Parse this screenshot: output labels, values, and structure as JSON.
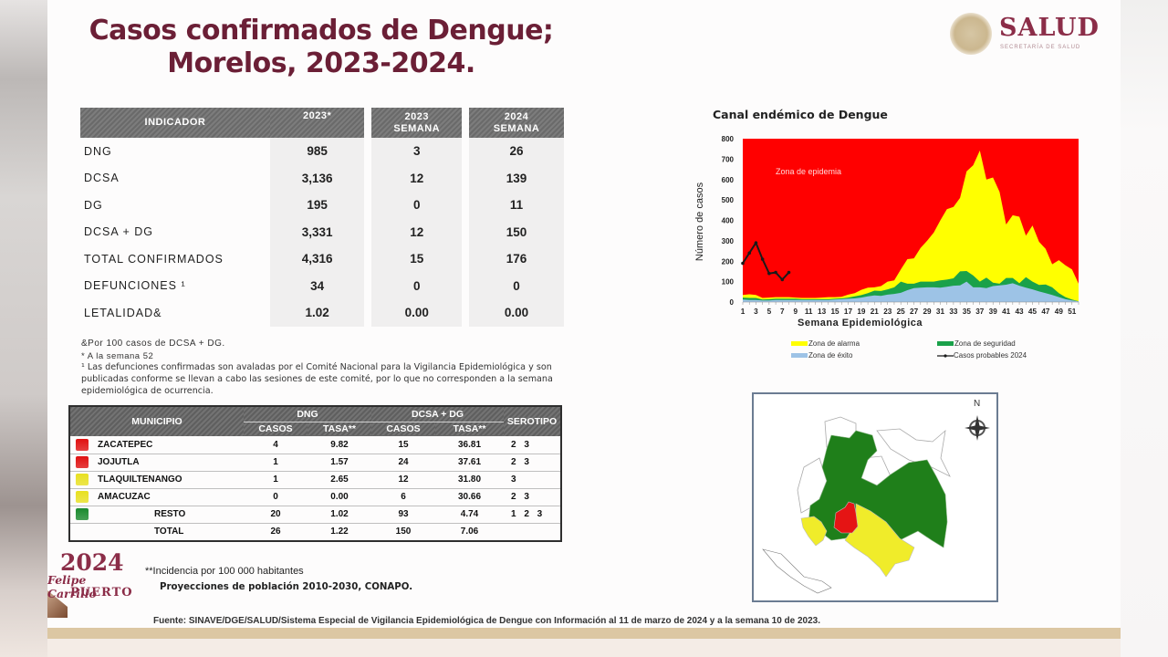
{
  "title": {
    "line1": "Casos confirmados de Dengue;",
    "line2": "Morelos, 2023-2024."
  },
  "logo": {
    "brand": "SALUD",
    "subtitle": "SECRETARÍA DE SALUD"
  },
  "indicator_table": {
    "headers": [
      "INDICADOR",
      "2023*",
      "2023 SEMANA",
      "2024 SEMANA"
    ],
    "header_lines": {
      "col1": "INDICADOR",
      "col2": "2023*",
      "col3_a": "2023",
      "col3_b": "SEMANA",
      "col4_a": "2024",
      "col4_b": "SEMANA"
    },
    "rows": [
      {
        "label": "DNG",
        "y2023": "985",
        "w2023": "3",
        "w2024": "26"
      },
      {
        "label": "DCSA",
        "y2023": "3,136",
        "w2023": "12",
        "w2024": "139"
      },
      {
        "label": "DG",
        "y2023": "195",
        "w2023": "0",
        "w2024": "11"
      },
      {
        "label": "DCSA + DG",
        "y2023": "3,331",
        "w2023": "12",
        "w2024": "150"
      },
      {
        "label": "TOTAL CONFIRMADOS",
        "y2023": "4,316",
        "w2023": "15",
        "w2024": "176"
      },
      {
        "label": "DEFUNCIONES ¹",
        "y2023": "34",
        "w2023": "0",
        "w2024": "0"
      },
      {
        "label": "LETALIDAD&",
        "y2023": "1.02",
        "w2023": "0.00",
        "w2024": "0.00"
      }
    ]
  },
  "notes": {
    "n1": "&Por 100 casos de DCSA + DG.",
    "n2": "* A la semana 52",
    "n3": "¹ Las defunciones confirmadas son avaladas por el Comité Nacional para la Vigilancia Epidemiológica y son publicadas conforme se llevan a cabo las sesiones de este comité, por lo que no corresponden a la semana epidemiológica de ocurrencia."
  },
  "municipio_table": {
    "headers": {
      "municipio": "MUNICIPIO",
      "dng": "DNG",
      "dcsa_dg": "DCSA + DG",
      "serotipo": "SEROTIPO",
      "casos": "CASOS",
      "tasa": "TASA**"
    },
    "rows": [
      {
        "color": "#e01010",
        "name": "ZACATEPEC",
        "dng_casos": "4",
        "dng_tasa": "9.82",
        "dcsa_casos": "15",
        "dcsa_tasa": "36.81",
        "serotipo": "2 3"
      },
      {
        "color": "#e01010",
        "name": "JOJUTLA",
        "dng_casos": "1",
        "dng_tasa": "1.57",
        "dcsa_casos": "24",
        "dcsa_tasa": "37.61",
        "serotipo": "2 3"
      },
      {
        "color": "#e8e020",
        "name": "TLAQUILTENANGO",
        "dng_casos": "1",
        "dng_tasa": "2.65",
        "dcsa_casos": "12",
        "dcsa_tasa": "31.80",
        "serotipo": "3"
      },
      {
        "color": "#e8e020",
        "name": "AMACUZAC",
        "dng_casos": "0",
        "dng_tasa": "0.00",
        "dcsa_casos": "6",
        "dcsa_tasa": "30.66",
        "serotipo": "2 3"
      },
      {
        "color": "#1a8a2e",
        "name": "RESTO",
        "dng_casos": "20",
        "dng_tasa": "1.02",
        "dcsa_casos": "93",
        "dcsa_tasa": "4.74",
        "serotipo": "1 2 3"
      },
      {
        "color": "",
        "name": "TOTAL",
        "dng_casos": "26",
        "dng_tasa": "1.22",
        "dcsa_casos": "150",
        "dcsa_tasa": "7.06",
        "serotipo": ""
      }
    ]
  },
  "footnotes": {
    "incidencia": "**Incidencia por 100 000 habitantes",
    "proyecciones": "Proyecciones de población 2010-2030,  CONAPO.",
    "fuente": "Fuente: SINAVE/DGE/SALUD/Sistema Especial de Vigilancia Epidemiológica de Dengue con Información al 11 de marzo de 2024 y a la semana 10 de 2023."
  },
  "campaign_logo": {
    "year": "2024",
    "name1": "Felipe Carrillo",
    "name2": "PUERTO"
  },
  "map": {
    "north_label": "N"
  },
  "colors": {
    "title": "#6b1f36",
    "epidemia": "#ff0000",
    "alarma": "#ffff00",
    "seguridad": "#1aa14a",
    "exito": "#9dc3e6",
    "casos_2024": "#1a1a1a"
  },
  "chart_data": {
    "type": "area",
    "title": "Canal endémico de Dengue",
    "xlabel": "Semana Epidemiológica",
    "ylabel": "Número de casos",
    "ylim": [
      0,
      800
    ],
    "yticks": [
      0,
      100,
      200,
      300,
      400,
      500,
      600,
      700,
      800
    ],
    "x": [
      1,
      2,
      3,
      4,
      5,
      6,
      7,
      8,
      9,
      10,
      11,
      12,
      13,
      14,
      15,
      16,
      17,
      18,
      19,
      20,
      21,
      22,
      23,
      24,
      25,
      26,
      27,
      28,
      29,
      30,
      31,
      32,
      33,
      34,
      35,
      36,
      37,
      38,
      39,
      40,
      41,
      42,
      43,
      44,
      45,
      46,
      47,
      48,
      49,
      50,
      51,
      52
    ],
    "xtick_labels": [
      "1",
      "3",
      "5",
      "7",
      "9",
      "11",
      "13",
      "15",
      "17",
      "19",
      "21",
      "23",
      "25",
      "27",
      "29",
      "31",
      "33",
      "35",
      "37",
      "39",
      "41",
      "43",
      "45",
      "47",
      "49",
      "51"
    ],
    "annotation": "Zona de epidemia",
    "legend": [
      "Zona de alarma",
      "Zona de seguridad",
      "Zona de éxito",
      "Casos probables 2024"
    ],
    "legend_position": "bottom",
    "grid": false,
    "series": [
      {
        "name": "Zona de éxito",
        "color": "#9dc3e6",
        "values": [
          12,
          10,
          10,
          8,
          8,
          10,
          10,
          10,
          10,
          10,
          10,
          10,
          10,
          10,
          12,
          14,
          16,
          18,
          22,
          28,
          32,
          30,
          36,
          40,
          45,
          58,
          68,
          70,
          72,
          72,
          70,
          75,
          80,
          82,
          100,
          72,
          72,
          68,
          78,
          82,
          85,
          92,
          80,
          70,
          62,
          52,
          44,
          35,
          24,
          14,
          8,
          3
        ]
      },
      {
        "name": "Zona de seguridad",
        "color": "#1aa14a",
        "values": [
          22,
          20,
          20,
          12,
          14,
          16,
          16,
          16,
          16,
          14,
          14,
          14,
          14,
          14,
          16,
          18,
          22,
          28,
          34,
          44,
          56,
          54,
          62,
          72,
          100,
          90,
          90,
          100,
          100,
          100,
          106,
          110,
          116,
          150,
          152,
          130,
          100,
          120,
          95,
          90,
          118,
          118,
          92,
          122,
          100,
          84,
          86,
          72,
          44,
          24,
          12,
          4
        ]
      },
      {
        "name": "Zona de alarma",
        "color": "#ffff00",
        "values": [
          35,
          38,
          35,
          20,
          22,
          24,
          24,
          24,
          22,
          20,
          20,
          20,
          22,
          24,
          24,
          26,
          36,
          44,
          60,
          70,
          72,
          78,
          100,
          106,
          160,
          210,
          214,
          265,
          300,
          340,
          400,
          455,
          466,
          510,
          640,
          670,
          742,
          600,
          610,
          540,
          380,
          425,
          418,
          325,
          375,
          295,
          260,
          185,
          205,
          180,
          160,
          90
        ]
      },
      {
        "name": "Casos probables 2024",
        "color": "#1a1a1a",
        "type": "line",
        "values": [
          190,
          240,
          290,
          210,
          140,
          145,
          110,
          145
        ]
      }
    ]
  }
}
